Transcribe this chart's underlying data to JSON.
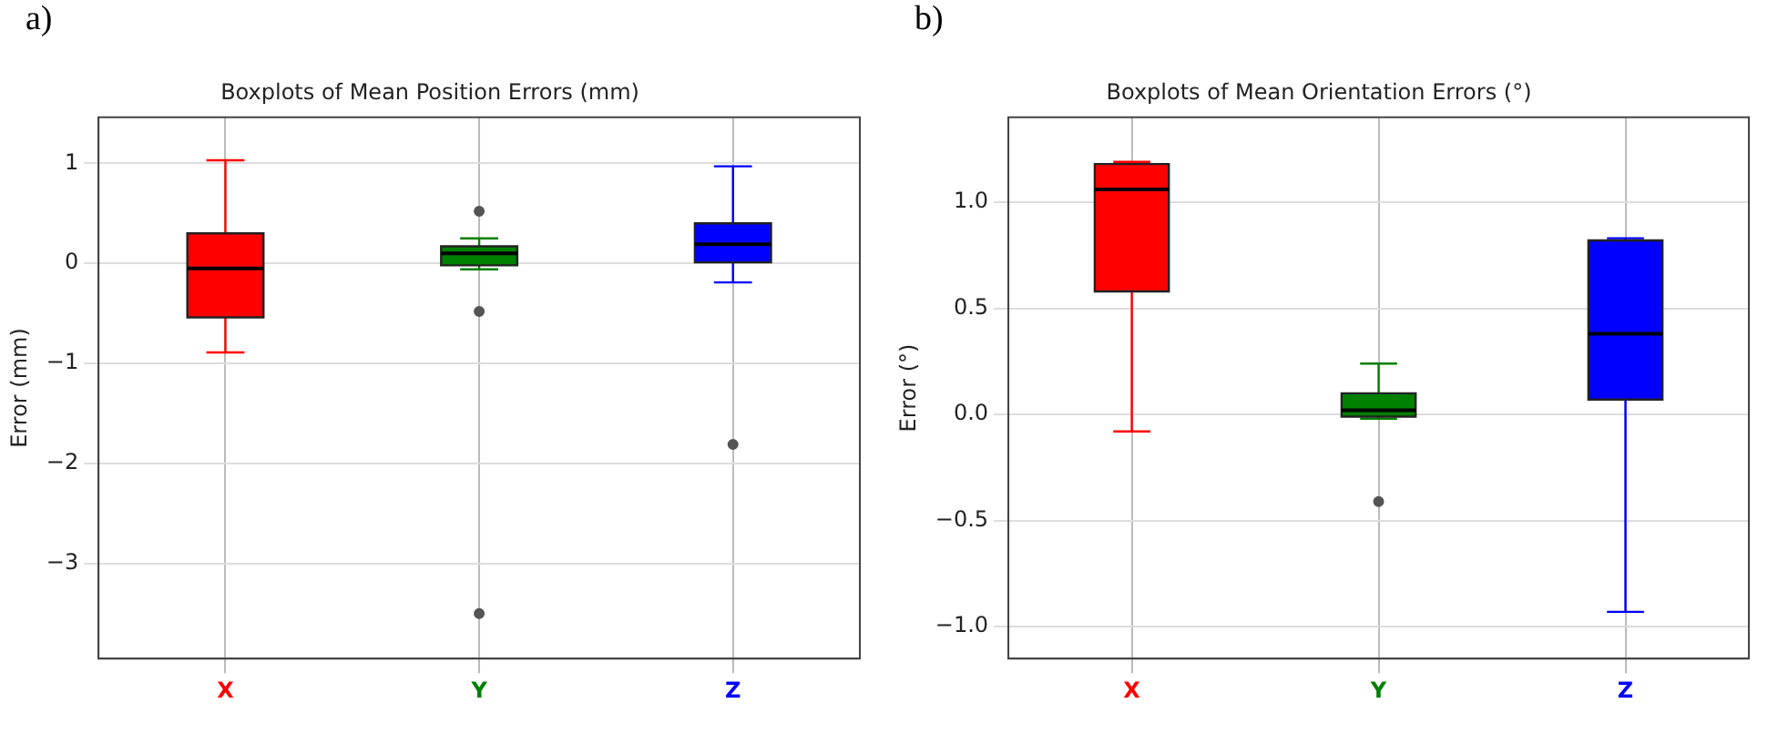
{
  "chart_data": [
    {
      "type": "box",
      "title": "Boxplots of Mean Position Errors (mm)",
      "ylabel": "Error (mm)",
      "annotations": [
        "a)"
      ],
      "categories": [
        "X",
        "Y",
        "Z"
      ],
      "colors": [
        "#ff0000",
        "#008000",
        "#0000ff"
      ],
      "boxes": [
        {
          "low": -0.89,
          "q1": -0.54,
          "median": -0.05,
          "q3": 0.3,
          "high": 1.03
        },
        {
          "low": -0.06,
          "q1": -0.02,
          "median": 0.1,
          "q3": 0.17,
          "high": 0.25,
          "outliers": [
            0.52,
            -0.48,
            -3.5
          ]
        },
        {
          "low": -0.19,
          "q1": 0.01,
          "median": 0.19,
          "q3": 0.4,
          "high": 0.97,
          "outliers": [
            -1.81
          ]
        }
      ],
      "ylim": [
        -3.95,
        1.46
      ],
      "yticks": [
        -3,
        -2,
        -1,
        0,
        1
      ],
      "grid": true
    },
    {
      "type": "box",
      "title": "Boxplots of Mean Orientation Errors (°)",
      "ylabel": "Error (°)",
      "annotations": [
        "b)"
      ],
      "categories": [
        "X",
        "Y",
        "Z"
      ],
      "colors": [
        "#ff0000",
        "#008000",
        "#0000ff"
      ],
      "boxes": [
        {
          "low": -0.08,
          "q1": 0.58,
          "median": 1.06,
          "q3": 1.18,
          "high": 1.19
        },
        {
          "low": -0.02,
          "q1": -0.01,
          "median": 0.02,
          "q3": 0.1,
          "high": 0.24,
          "outliers": [
            -0.41
          ]
        },
        {
          "low": -0.93,
          "q1": 0.07,
          "median": 0.38,
          "q3": 0.82,
          "high": 0.83
        }
      ],
      "ylim": [
        -1.15,
        1.4
      ],
      "yticks": [
        {
          "value": -1,
          "label": "−1.0"
        },
        {
          "value": -0.5,
          "label": "−0.5"
        },
        {
          "value": 0,
          "label": "0.0"
        },
        {
          "value": 0.5,
          "label": "0.5"
        },
        {
          "value": 1,
          "label": "1.0"
        }
      ],
      "grid": true
    }
  ]
}
